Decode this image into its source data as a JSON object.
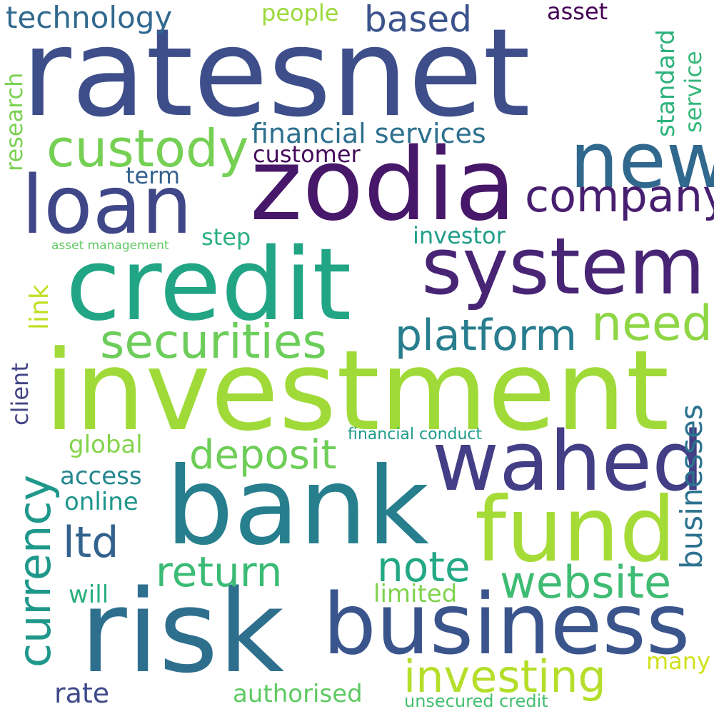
{
  "words": {
    "ratesnet": {
      "text": "ratesnet",
      "color": "#3d4e8a"
    },
    "zodia": {
      "text": "zodia",
      "color": "#471769"
    },
    "credit": {
      "text": "credit",
      "color": "#21a585"
    },
    "investment": {
      "text": "investment",
      "color": "#a0da39"
    },
    "bank": {
      "text": "bank",
      "color": "#277f8e"
    },
    "risk": {
      "text": "risk",
      "color": "#2e6f8e"
    },
    "business": {
      "text": "business",
      "color": "#3a548c"
    },
    "system": {
      "text": "system",
      "color": "#482475"
    },
    "loan": {
      "text": "loan",
      "color": "#3f4788"
    },
    "new": {
      "text": "new",
      "color": "#31688e"
    },
    "wahed": {
      "text": "wahed",
      "color": "#433e85"
    },
    "fund": {
      "text": "fund",
      "color": "#a5db36"
    },
    "custody": {
      "text": "custody",
      "color": "#75d054"
    },
    "securities": {
      "text": "securities",
      "color": "#6ccd5a"
    },
    "company": {
      "text": "company",
      "color": "#481f70"
    },
    "platform": {
      "text": "platform",
      "color": "#287d8e"
    },
    "need": {
      "text": "need",
      "color": "#8ed645"
    },
    "currency": {
      "text": "currency",
      "color": "#1f988b"
    },
    "deposit": {
      "text": "deposit",
      "color": "#6ece58"
    },
    "investing": {
      "text": "investing",
      "color": "#b5de2b"
    },
    "website": {
      "text": "website",
      "color": "#3fbc73"
    },
    "businesses": {
      "text": "businesses",
      "color": "#2c728e"
    },
    "return": {
      "text": "return",
      "color": "#3bbb75"
    },
    "note": {
      "text": "note",
      "color": "#22a884"
    },
    "ltd": {
      "text": "ltd",
      "color": "#33638d"
    },
    "technology": {
      "text": "technology",
      "color": "#30698e"
    },
    "based": {
      "text": "based",
      "color": "#3b528b"
    },
    "financial_services": {
      "text": "financial services",
      "color": "#2d708e"
    },
    "asset_top": {
      "text": "asset",
      "color": "#440154"
    },
    "people": {
      "text": "people",
      "color": "#9bd93c"
    },
    "standard": {
      "text": "standard",
      "color": "#2db27d"
    },
    "service": {
      "text": "service",
      "color": "#35b779"
    },
    "research": {
      "text": "research",
      "color": "#7ad151"
    },
    "customer": {
      "text": "customer",
      "color": "#450a5c"
    },
    "term": {
      "text": "term",
      "color": "#34608d"
    },
    "step": {
      "text": "step",
      "color": "#2ab07f"
    },
    "investor": {
      "text": "investor",
      "color": "#1f9e89"
    },
    "asset_management": {
      "text": "asset management",
      "color": "#5ec962"
    },
    "link": {
      "text": "link",
      "color": "#c2df23"
    },
    "client": {
      "text": "client",
      "color": "#414487"
    },
    "financial_conduct": {
      "text": "financial conduct",
      "color": "#1e9b8a"
    },
    "global": {
      "text": "global",
      "color": "#84d44b"
    },
    "access": {
      "text": "access",
      "color": "#24878e"
    },
    "online": {
      "text": "online",
      "color": "#1f958b"
    },
    "will": {
      "text": "will",
      "color": "#2ab07f"
    },
    "limited": {
      "text": "limited",
      "color": "#7fd34e"
    },
    "rate": {
      "text": "rate",
      "color": "#3e4a89"
    },
    "authorised": {
      "text": "authorised",
      "color": "#5ec962"
    },
    "unsecured_credit": {
      "text": "unsecured credit",
      "color": "#44bf70"
    },
    "many": {
      "text": "many",
      "color": "#d0e11c"
    }
  }
}
